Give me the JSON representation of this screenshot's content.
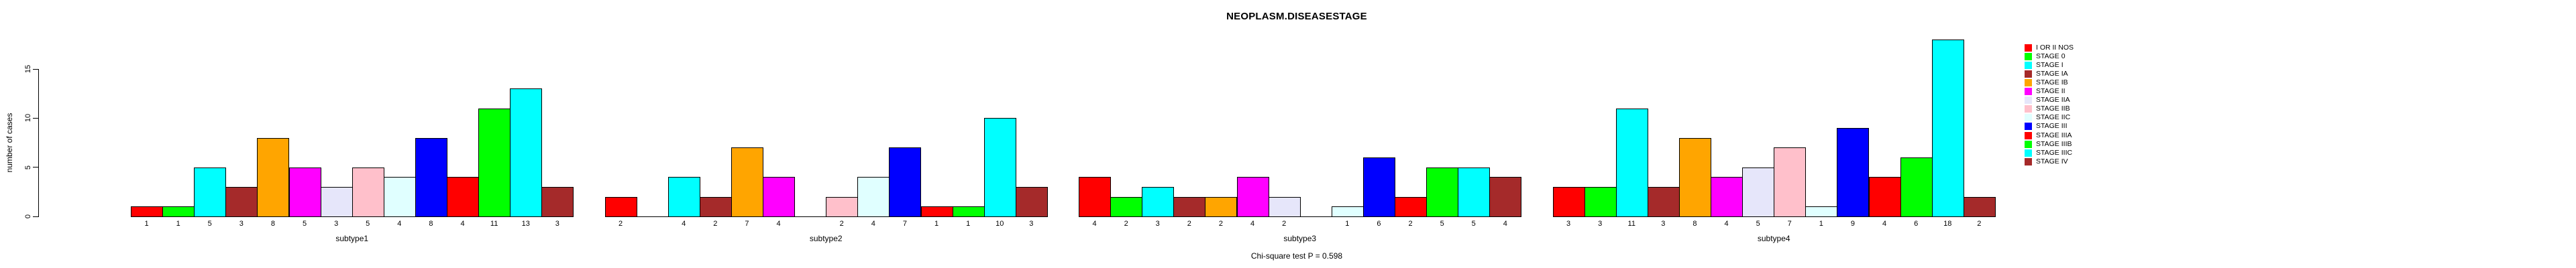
{
  "title": "NEOPLASM.DISEASESTAGE",
  "footer": "Chi-square test P = 0.598",
  "y_axis": {
    "label": "number of cases",
    "ticks": [
      0,
      5,
      10,
      15
    ]
  },
  "legend": {
    "items": [
      {
        "label": "I OR II NOS",
        "color": "#FF0000"
      },
      {
        "label": "STAGE 0",
        "color": "#00FF00"
      },
      {
        "label": "STAGE I",
        "color": "#00FFFF"
      },
      {
        "label": "STAGE IA",
        "color": "#A52A2A"
      },
      {
        "label": "STAGE IB",
        "color": "#FFA500"
      },
      {
        "label": "STAGE II",
        "color": "#FF00FF"
      },
      {
        "label": "STAGE IIA",
        "color": "#E6E6FA"
      },
      {
        "label": "STAGE IIB",
        "color": "#FFC0CB"
      },
      {
        "label": "STAGE IIC",
        "color": "#E0FFFF"
      },
      {
        "label": "STAGE III",
        "color": "#0000FF"
      },
      {
        "label": "STAGE IIIA",
        "color": "#FF0000"
      },
      {
        "label": "STAGE IIIB",
        "color": "#00FF00"
      },
      {
        "label": "STAGE IIIC",
        "color": "#00FFFF"
      },
      {
        "label": "STAGE IV",
        "color": "#A52A2A"
      }
    ]
  },
  "chart_data": {
    "type": "bar",
    "title": "NEOPLASM.DISEASESTAGE",
    "xlabel": "",
    "ylabel": "number of cases",
    "ylim": [
      0,
      15
    ],
    "grid": false,
    "legend_position": "right",
    "annotation": "Chi-square test P = 0.598",
    "categories": [
      "I OR II NOS",
      "STAGE 0",
      "STAGE I",
      "STAGE IA",
      "STAGE IB",
      "STAGE II",
      "STAGE IIA",
      "STAGE IIB",
      "STAGE IIC",
      "STAGE III",
      "STAGE IIIA",
      "STAGE IIIB",
      "STAGE IIIC",
      "STAGE IV"
    ],
    "colors": [
      "#FF0000",
      "#00FF00",
      "#00FFFF",
      "#A52A2A",
      "#FFA500",
      "#FF00FF",
      "#E6E6FA",
      "#FFC0CB",
      "#E0FFFF",
      "#0000FF",
      "#FF0000",
      "#00FF00",
      "#00FFFF",
      "#A52A2A"
    ],
    "series": [
      {
        "name": "subtype1",
        "values": [
          1,
          1,
          5,
          3,
          8,
          5,
          3,
          5,
          4,
          8,
          4,
          11,
          13,
          3
        ]
      },
      {
        "name": "subtype2",
        "values": [
          2,
          0,
          4,
          2,
          7,
          4,
          0,
          2,
          4,
          7,
          1,
          1,
          10,
          3
        ]
      },
      {
        "name": "subtype3",
        "values": [
          4,
          2,
          3,
          2,
          2,
          4,
          2,
          0,
          1,
          6,
          2,
          5,
          5,
          4
        ]
      },
      {
        "name": "subtype4",
        "values": [
          3,
          3,
          11,
          3,
          8,
          4,
          5,
          7,
          1,
          9,
          4,
          6,
          18,
          2
        ]
      }
    ]
  }
}
